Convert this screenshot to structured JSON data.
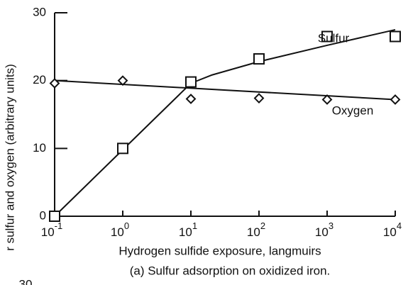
{
  "chart_data": {
    "type": "scatter",
    "x_label": "Hydrogen sulfide exposure, langmuirs",
    "y_label": "r sulfur and oxygen (arbitrary units)",
    "caption": "(a) Sulfur adsorption on oxidized iron.",
    "fragment_text": "30",
    "log_x": true,
    "xlim": [
      0.1,
      10000
    ],
    "ylim": [
      0,
      30
    ],
    "xticks": [
      {
        "value": 0.1,
        "label": "10",
        "exponent": "-1"
      },
      {
        "value": 1,
        "label": "10",
        "exponent": "0"
      },
      {
        "value": 10,
        "label": "10",
        "exponent": "1"
      },
      {
        "value": 100,
        "label": "10",
        "exponent": "2"
      },
      {
        "value": 1000,
        "label": "10",
        "exponent": "3"
      },
      {
        "value": 10000,
        "label": "10",
        "exponent": "4"
      }
    ],
    "yticks": [
      0,
      10,
      20,
      30
    ],
    "series": [
      {
        "name": "Sulfur",
        "marker": "square",
        "color": "#111111",
        "x": [
          0.1,
          1,
          10,
          100,
          1000,
          10000
        ],
        "values": [
          0,
          10,
          19.8,
          23.2,
          26.5,
          26.5
        ],
        "curve": {
          "x": [
            0.1,
            1,
            10,
            20,
            100,
            1000,
            10000
          ],
          "values": [
            0,
            9.8,
            19.6,
            20.8,
            22.8,
            25.2,
            27.5
          ]
        }
      },
      {
        "name": "Oxygen",
        "marker": "diamond",
        "color": "#111111",
        "x": [
          0.1,
          1,
          10,
          100,
          1000,
          10000
        ],
        "values": [
          19.6,
          20,
          17.3,
          17.4,
          17.2,
          17.2
        ],
        "curve": {
          "x": [
            0.1,
            10000
          ],
          "values": [
            20,
            17.2
          ]
        }
      }
    ]
  }
}
